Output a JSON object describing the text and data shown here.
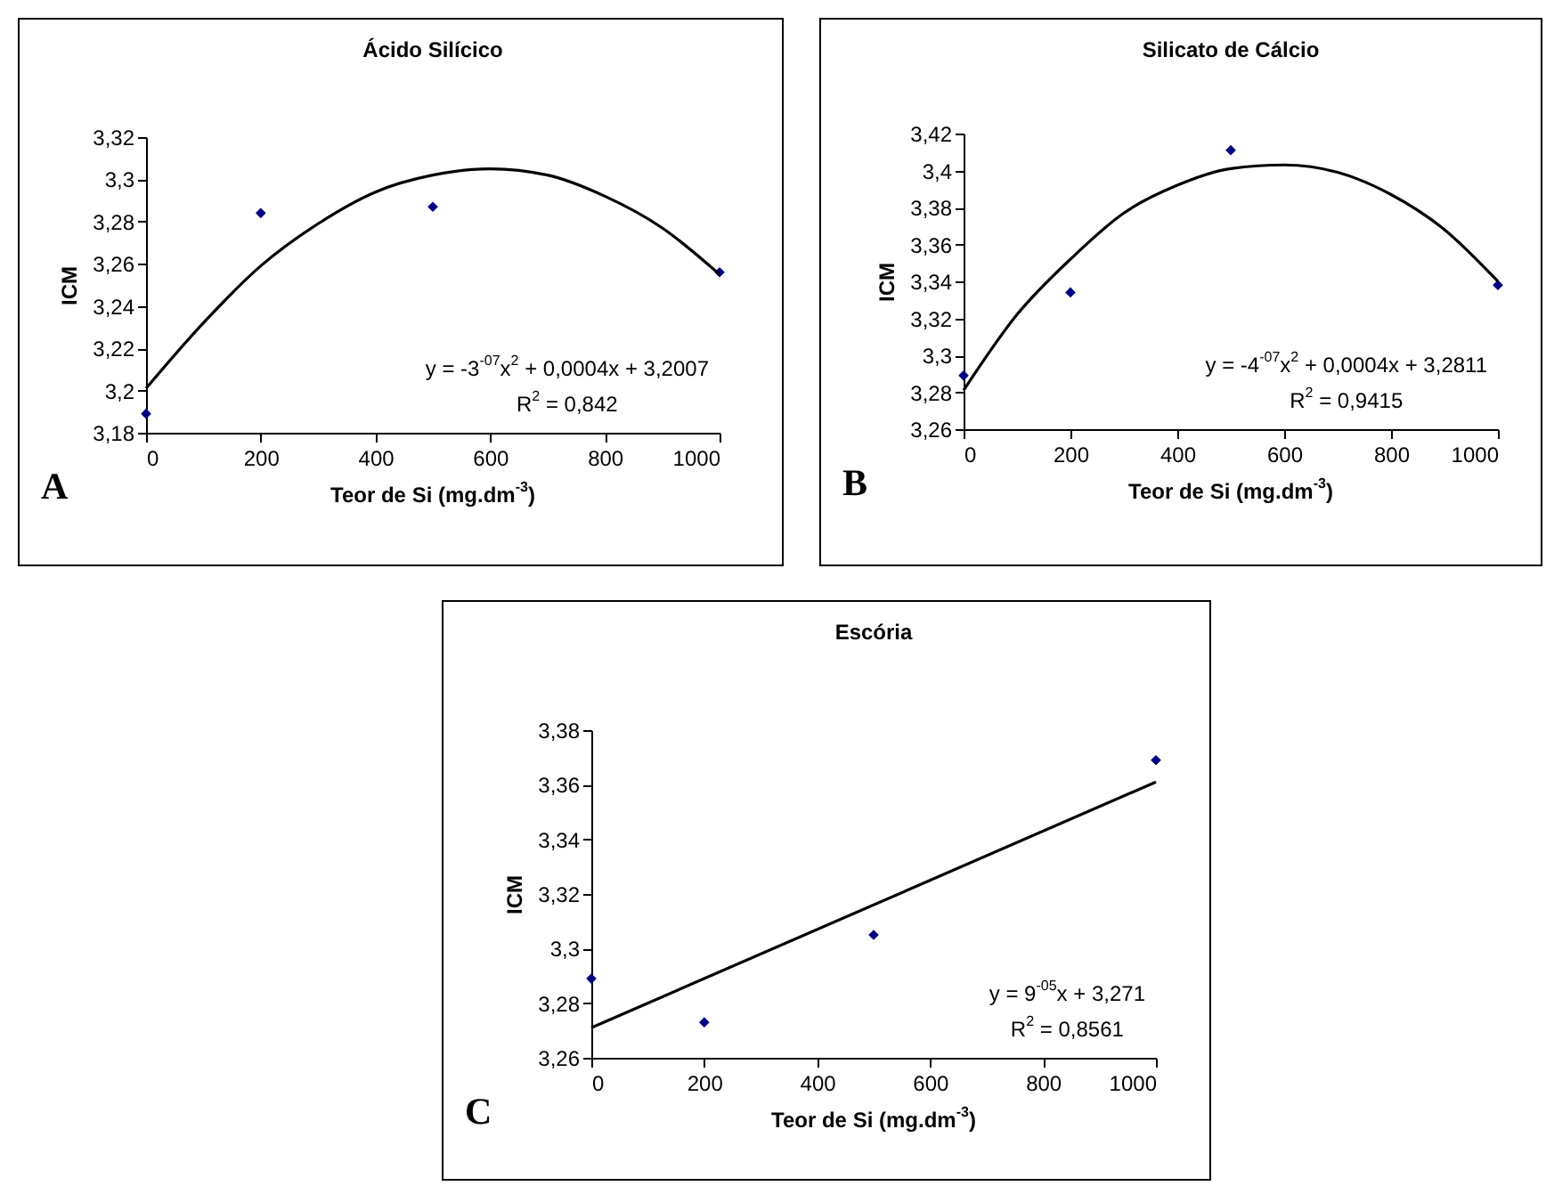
{
  "chart_data": [
    {
      "type": "scatter",
      "title": "Ácido Silícico",
      "xlabel": "Teor de Si (mg.dm$^{-3}$)",
      "ylabel": "ICM",
      "x": [
        0,
        200,
        500,
        1000
      ],
      "grid": false,
      "series": [
        {
          "type": "scatter",
          "color": "#000080",
          "marker": "diamond",
          "values": [
            3.189,
            3.284,
            3.287,
            3.256
          ]
        },
        {
          "type": "line",
          "color": "#000000",
          "x": [
            0,
            100,
            200,
            300,
            400,
            500,
            600,
            700,
            800,
            900,
            1000
          ],
          "values": [
            3.201,
            3.232,
            3.259,
            3.279,
            3.294,
            3.302,
            3.305,
            3.302,
            3.292,
            3.277,
            3.255
          ]
        }
      ],
      "xlim": [
        0,
        1000
      ],
      "xticks": [
        0,
        200,
        400,
        600,
        800,
        1000
      ],
      "ylim": [
        3.18,
        3.32
      ],
      "yticks": [
        {
          "value": 3.18,
          "label": "3,18"
        },
        {
          "value": 3.2,
          "label": "3,2"
        },
        {
          "value": 3.22,
          "label": "3,22"
        },
        {
          "value": 3.24,
          "label": "3,24"
        },
        {
          "value": 3.26,
          "label": "3,26"
        },
        {
          "value": 3.28,
          "label": "3,28"
        },
        {
          "value": 3.3,
          "label": "3,3"
        },
        {
          "value": 3.32,
          "label": "3,32"
        }
      ],
      "annotations": [
        "y = -3$^{-07}$x$^{2}$ + 0,0004x + 3,2007",
        "R$^{2}$ = 0,842",
        "A"
      ]
    },
    {
      "type": "scatter",
      "title": "Silicato de Cálcio",
      "xlabel": "Teor de Si (mg.dm$^{-3}$)",
      "ylabel": "ICM",
      "x": [
        0,
        200,
        500,
        1000
      ],
      "grid": false,
      "series": [
        {
          "type": "scatter",
          "color": "#000080",
          "marker": "diamond",
          "values": [
            3.289,
            3.334,
            3.411,
            3.338
          ]
        },
        {
          "type": "line",
          "color": "#000000",
          "x": [
            0,
            100,
            200,
            300,
            400,
            500,
            600,
            700,
            800,
            900,
            1000
          ],
          "values": [
            3.281,
            3.322,
            3.352,
            3.377,
            3.392,
            3.401,
            3.403,
            3.399,
            3.387,
            3.368,
            3.34
          ]
        }
      ],
      "xlim": [
        0,
        1000
      ],
      "xticks": [
        0,
        200,
        400,
        600,
        800,
        1000
      ],
      "ylim": [
        3.26,
        3.42
      ],
      "yticks": [
        {
          "value": 3.26,
          "label": "3,26"
        },
        {
          "value": 3.28,
          "label": "3,28"
        },
        {
          "value": 3.3,
          "label": "3,3"
        },
        {
          "value": 3.32,
          "label": "3,32"
        },
        {
          "value": 3.34,
          "label": "3,34"
        },
        {
          "value": 3.36,
          "label": "3,36"
        },
        {
          "value": 3.38,
          "label": "3,38"
        },
        {
          "value": 3.4,
          "label": "3,4"
        },
        {
          "value": 3.42,
          "label": "3,42"
        }
      ],
      "annotations": [
        "y = -4$^{-07}$x$^{2}$ + 0,0004x + 3,2811",
        "R$^{2}$ = 0,9415",
        "B"
      ]
    },
    {
      "type": "scatter",
      "title": "Escória",
      "xlabel": "Teor de Si (mg.dm$^{-3}$)",
      "ylabel": "ICM",
      "x": [
        0,
        200,
        500,
        1000
      ],
      "grid": false,
      "series": [
        {
          "type": "scatter",
          "color": "#000080",
          "marker": "diamond",
          "values": [
            3.289,
            3.273,
            3.305,
            3.369
          ]
        },
        {
          "type": "line",
          "color": "#000000",
          "x": [
            0,
            1000
          ],
          "values": [
            3.271,
            3.361
          ]
        }
      ],
      "xlim": [
        0,
        1000
      ],
      "xticks": [
        0,
        200,
        400,
        600,
        800,
        1000
      ],
      "ylim": [
        3.26,
        3.38
      ],
      "yticks": [
        {
          "value": 3.26,
          "label": "3,26"
        },
        {
          "value": 3.28,
          "label": "3,28"
        },
        {
          "value": 3.3,
          "label": "3,3"
        },
        {
          "value": 3.32,
          "label": "3,32"
        },
        {
          "value": 3.34,
          "label": "3,34"
        },
        {
          "value": 3.36,
          "label": "3,36"
        },
        {
          "value": 3.38,
          "label": "3,38"
        }
      ],
      "annotations": [
        "y = 9$^{-05}$x + 3,271",
        "R$^{2}$ = 0,8561",
        "C"
      ]
    }
  ]
}
